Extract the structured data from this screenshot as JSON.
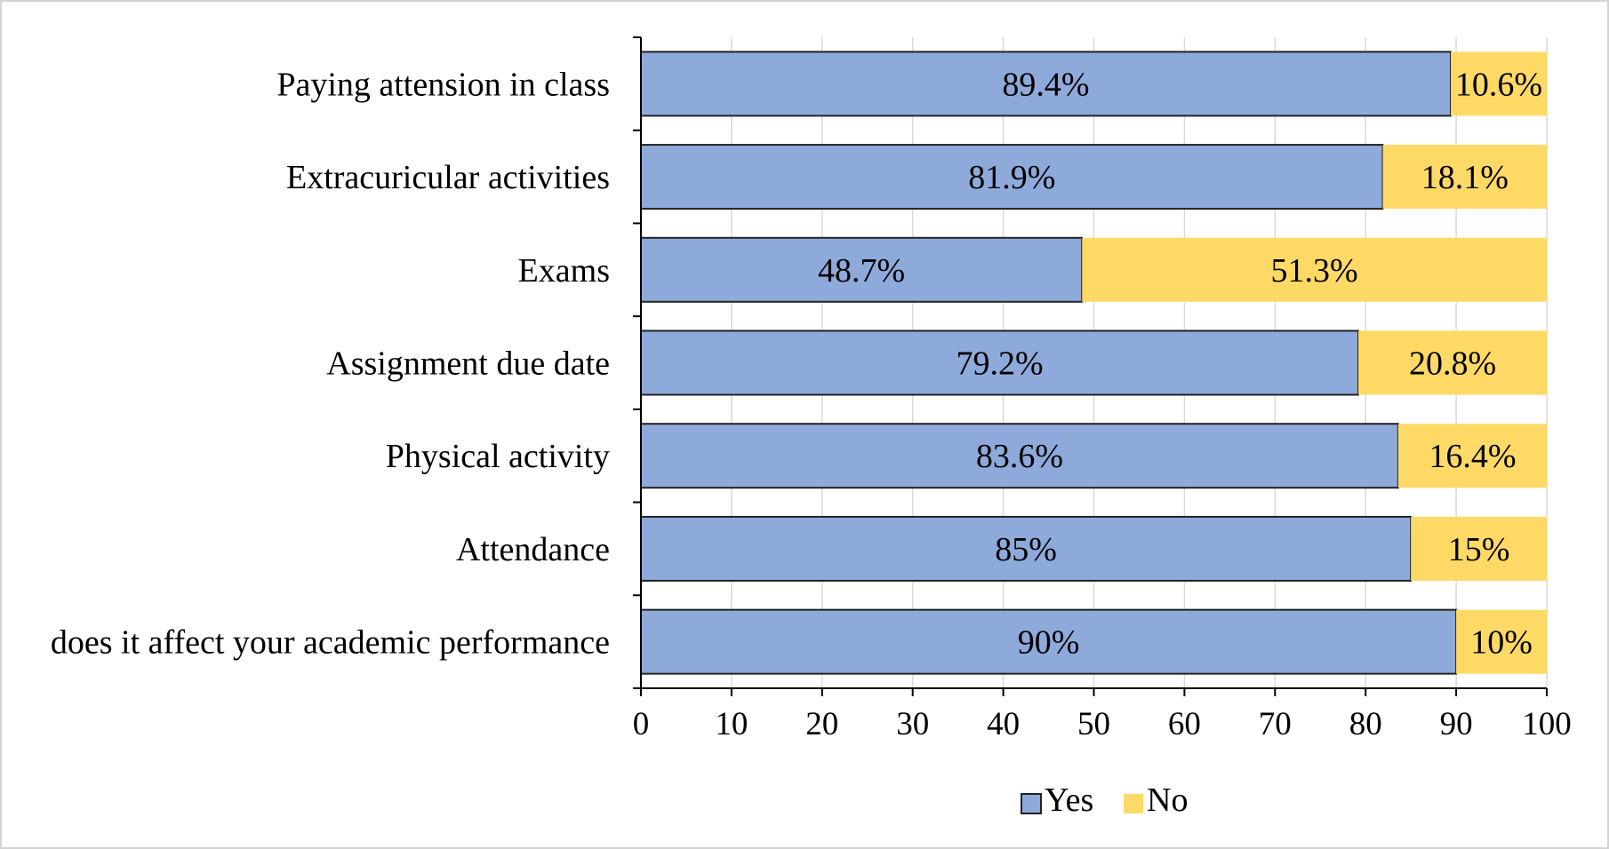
{
  "chart_data": {
    "type": "bar",
    "orientation": "horizontal",
    "stacked": true,
    "title": "",
    "xlabel": "",
    "ylabel": "",
    "categories": [
      "Paying attension in class",
      "Extracuricular activities",
      "Exams",
      "Assignment due date",
      "Physical activity",
      "Attendance",
      "does it affect your academic performance"
    ],
    "series": [
      {
        "name": "Yes",
        "color": "#8eaadb",
        "values": [
          89.4,
          81.9,
          48.7,
          79.2,
          83.6,
          85,
          90
        ],
        "labels": [
          "89.4%",
          "81.9%",
          "48.7%",
          "79.2%",
          "83.6%",
          "85%",
          "90%"
        ]
      },
      {
        "name": "No",
        "color": "#ffd966",
        "values": [
          10.6,
          18.1,
          51.3,
          20.8,
          16.4,
          15,
          10
        ],
        "labels": [
          "10.6%",
          "18.1%",
          "51.3%",
          "20.8%",
          "16.4%",
          "15%",
          "10%"
        ]
      }
    ],
    "xlim": [
      0,
      100
    ],
    "xticks": [
      0,
      10,
      20,
      30,
      40,
      50,
      60,
      70,
      80,
      90,
      100
    ],
    "grid": "vertical",
    "legend_position": "bottom"
  }
}
